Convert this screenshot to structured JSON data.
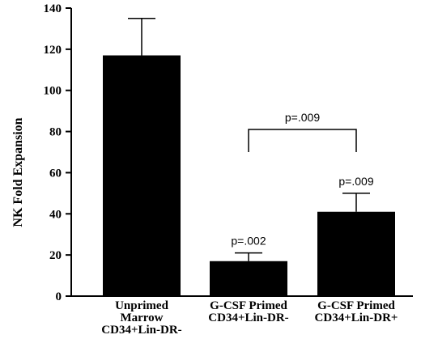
{
  "chart_data": {
    "type": "bar",
    "categories": [
      [
        "Unprimed",
        "Marrow",
        "CD34+Lin-DR-"
      ],
      [
        "G-CSF  Primed",
        "CD34+Lin-DR-"
      ],
      [
        "G-CSF  Primed",
        "CD34+Lin-DR+"
      ]
    ],
    "values": [
      117,
      17,
      41
    ],
    "error_upper": [
      135,
      21,
      50
    ],
    "ylabel": "NK  Fold  Expansion",
    "ylim": [
      0,
      140
    ],
    "yticks": [
      0,
      20,
      40,
      60,
      80,
      100,
      120,
      140
    ],
    "bar_color": "#000000",
    "annotations": [
      {
        "text": "p=.002",
        "bar": 1
      },
      {
        "text": "p=.009",
        "bar": 2
      }
    ],
    "bracket": {
      "from": 1,
      "to": 2,
      "text": "p=.009",
      "y": 81,
      "drop_to": 70
    }
  }
}
